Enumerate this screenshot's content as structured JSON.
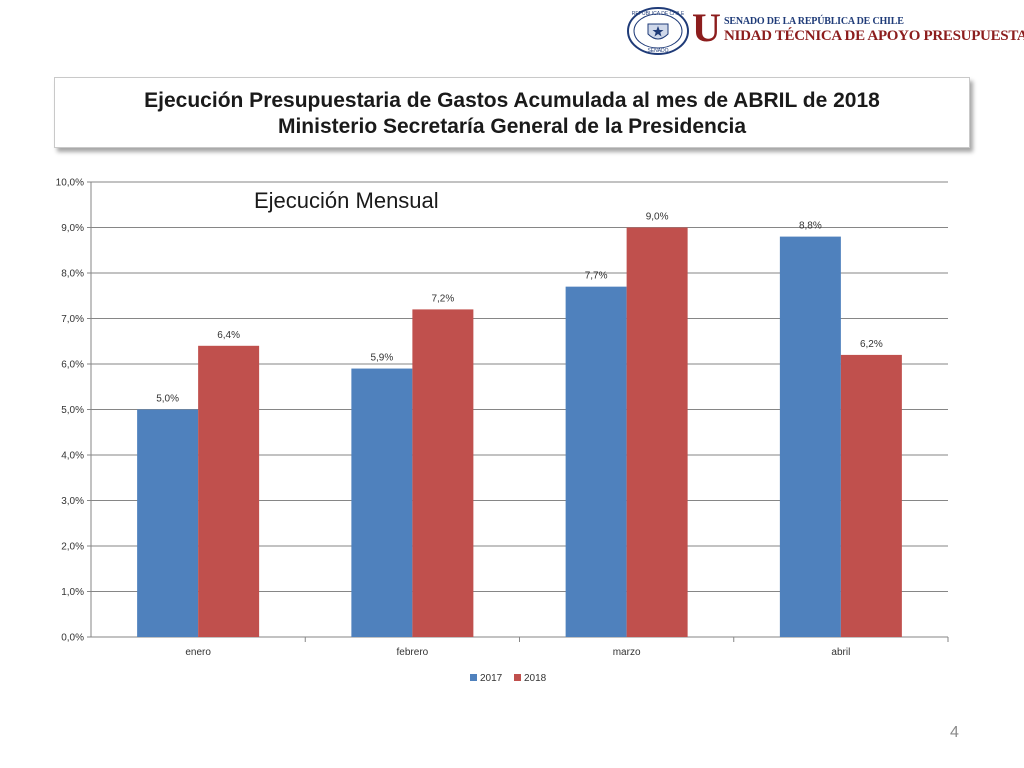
{
  "header": {
    "seal_text": "REPÚBLICA DE CHILE",
    "seal_bottom": "SENADO",
    "logo_letter": "U",
    "org_line1": "SENADO DE LA REPÚBLICA DE CHILE",
    "org_line2": "NIDAD TÉCNICA DE APOYO PRESUPUESTARIO",
    "colors": {
      "navy": "#1f3b78",
      "maroon": "#8c1d1d"
    }
  },
  "title": {
    "line1": "Ejecución Presupuestaria de Gastos Acumulada al mes de ABRIL de 2018",
    "line2": "Ministerio Secretaría General de la Presidencia"
  },
  "chart_data": {
    "type": "bar",
    "title": "Ejecución Mensual",
    "categories": [
      "enero",
      "febrero",
      "marzo",
      "abril"
    ],
    "series": [
      {
        "name": "2017",
        "values": [
          5.0,
          5.9,
          7.7,
          8.8
        ],
        "labels": [
          "5,0%",
          "5,9%",
          "7,7%",
          "8,8%"
        ],
        "color": "#4f81bd"
      },
      {
        "name": "2018",
        "values": [
          6.4,
          7.2,
          9.0,
          6.2
        ],
        "labels": [
          "6,4%",
          "7,2%",
          "9,0%",
          "6,2%"
        ],
        "color": "#c0504d"
      }
    ],
    "ylim": [
      0,
      10
    ],
    "yticks": [
      "0,0%",
      "1,0%",
      "2,0%",
      "3,0%",
      "4,0%",
      "5,0%",
      "6,0%",
      "7,0%",
      "8,0%",
      "9,0%",
      "10,0%"
    ],
    "grid": true,
    "legend": "bottom-center"
  },
  "page_number": "4"
}
